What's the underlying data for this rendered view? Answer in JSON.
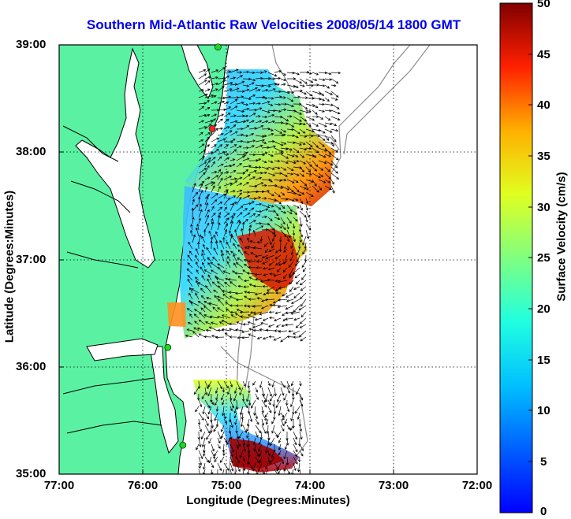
{
  "title": "Southern Mid-Atlantic Raw Velocities 2008/05/14 1800 GMT",
  "axes": {
    "xlabel": "Longitude (Degrees:Minutes)",
    "ylabel": "Latitude (Degrees:Minutes)",
    "xticks": [
      "77:00",
      "76:00",
      "75:00",
      "74:00",
      "73:00",
      "72:00"
    ],
    "yticks": [
      "39:00",
      "38:00",
      "37:00",
      "36:00",
      "35:00"
    ]
  },
  "colorbar": {
    "label": "Surface Velocity (cm/s)",
    "ticks": [
      "50",
      "45",
      "40",
      "35",
      "30",
      "25",
      "20",
      "15",
      "10",
      "5",
      "0"
    ],
    "min": 0,
    "max": 50
  },
  "map": {
    "lon_range": [
      -77,
      -72
    ],
    "lat_range": [
      35,
      39
    ],
    "land_color": "#5af2a2",
    "grid": true,
    "grid_style": "dotted",
    "colormap": "jet"
  },
  "stations": [
    {
      "lon": -75.1,
      "lat": 38.98,
      "color": "#1ed81e"
    },
    {
      "lon": -75.17,
      "lat": 38.22,
      "color": "#ff2020"
    },
    {
      "lon": -75.7,
      "lat": 36.18,
      "color": "#1ed81e"
    },
    {
      "lon": -75.52,
      "lat": 35.27,
      "color": "#1ed81e"
    }
  ]
}
